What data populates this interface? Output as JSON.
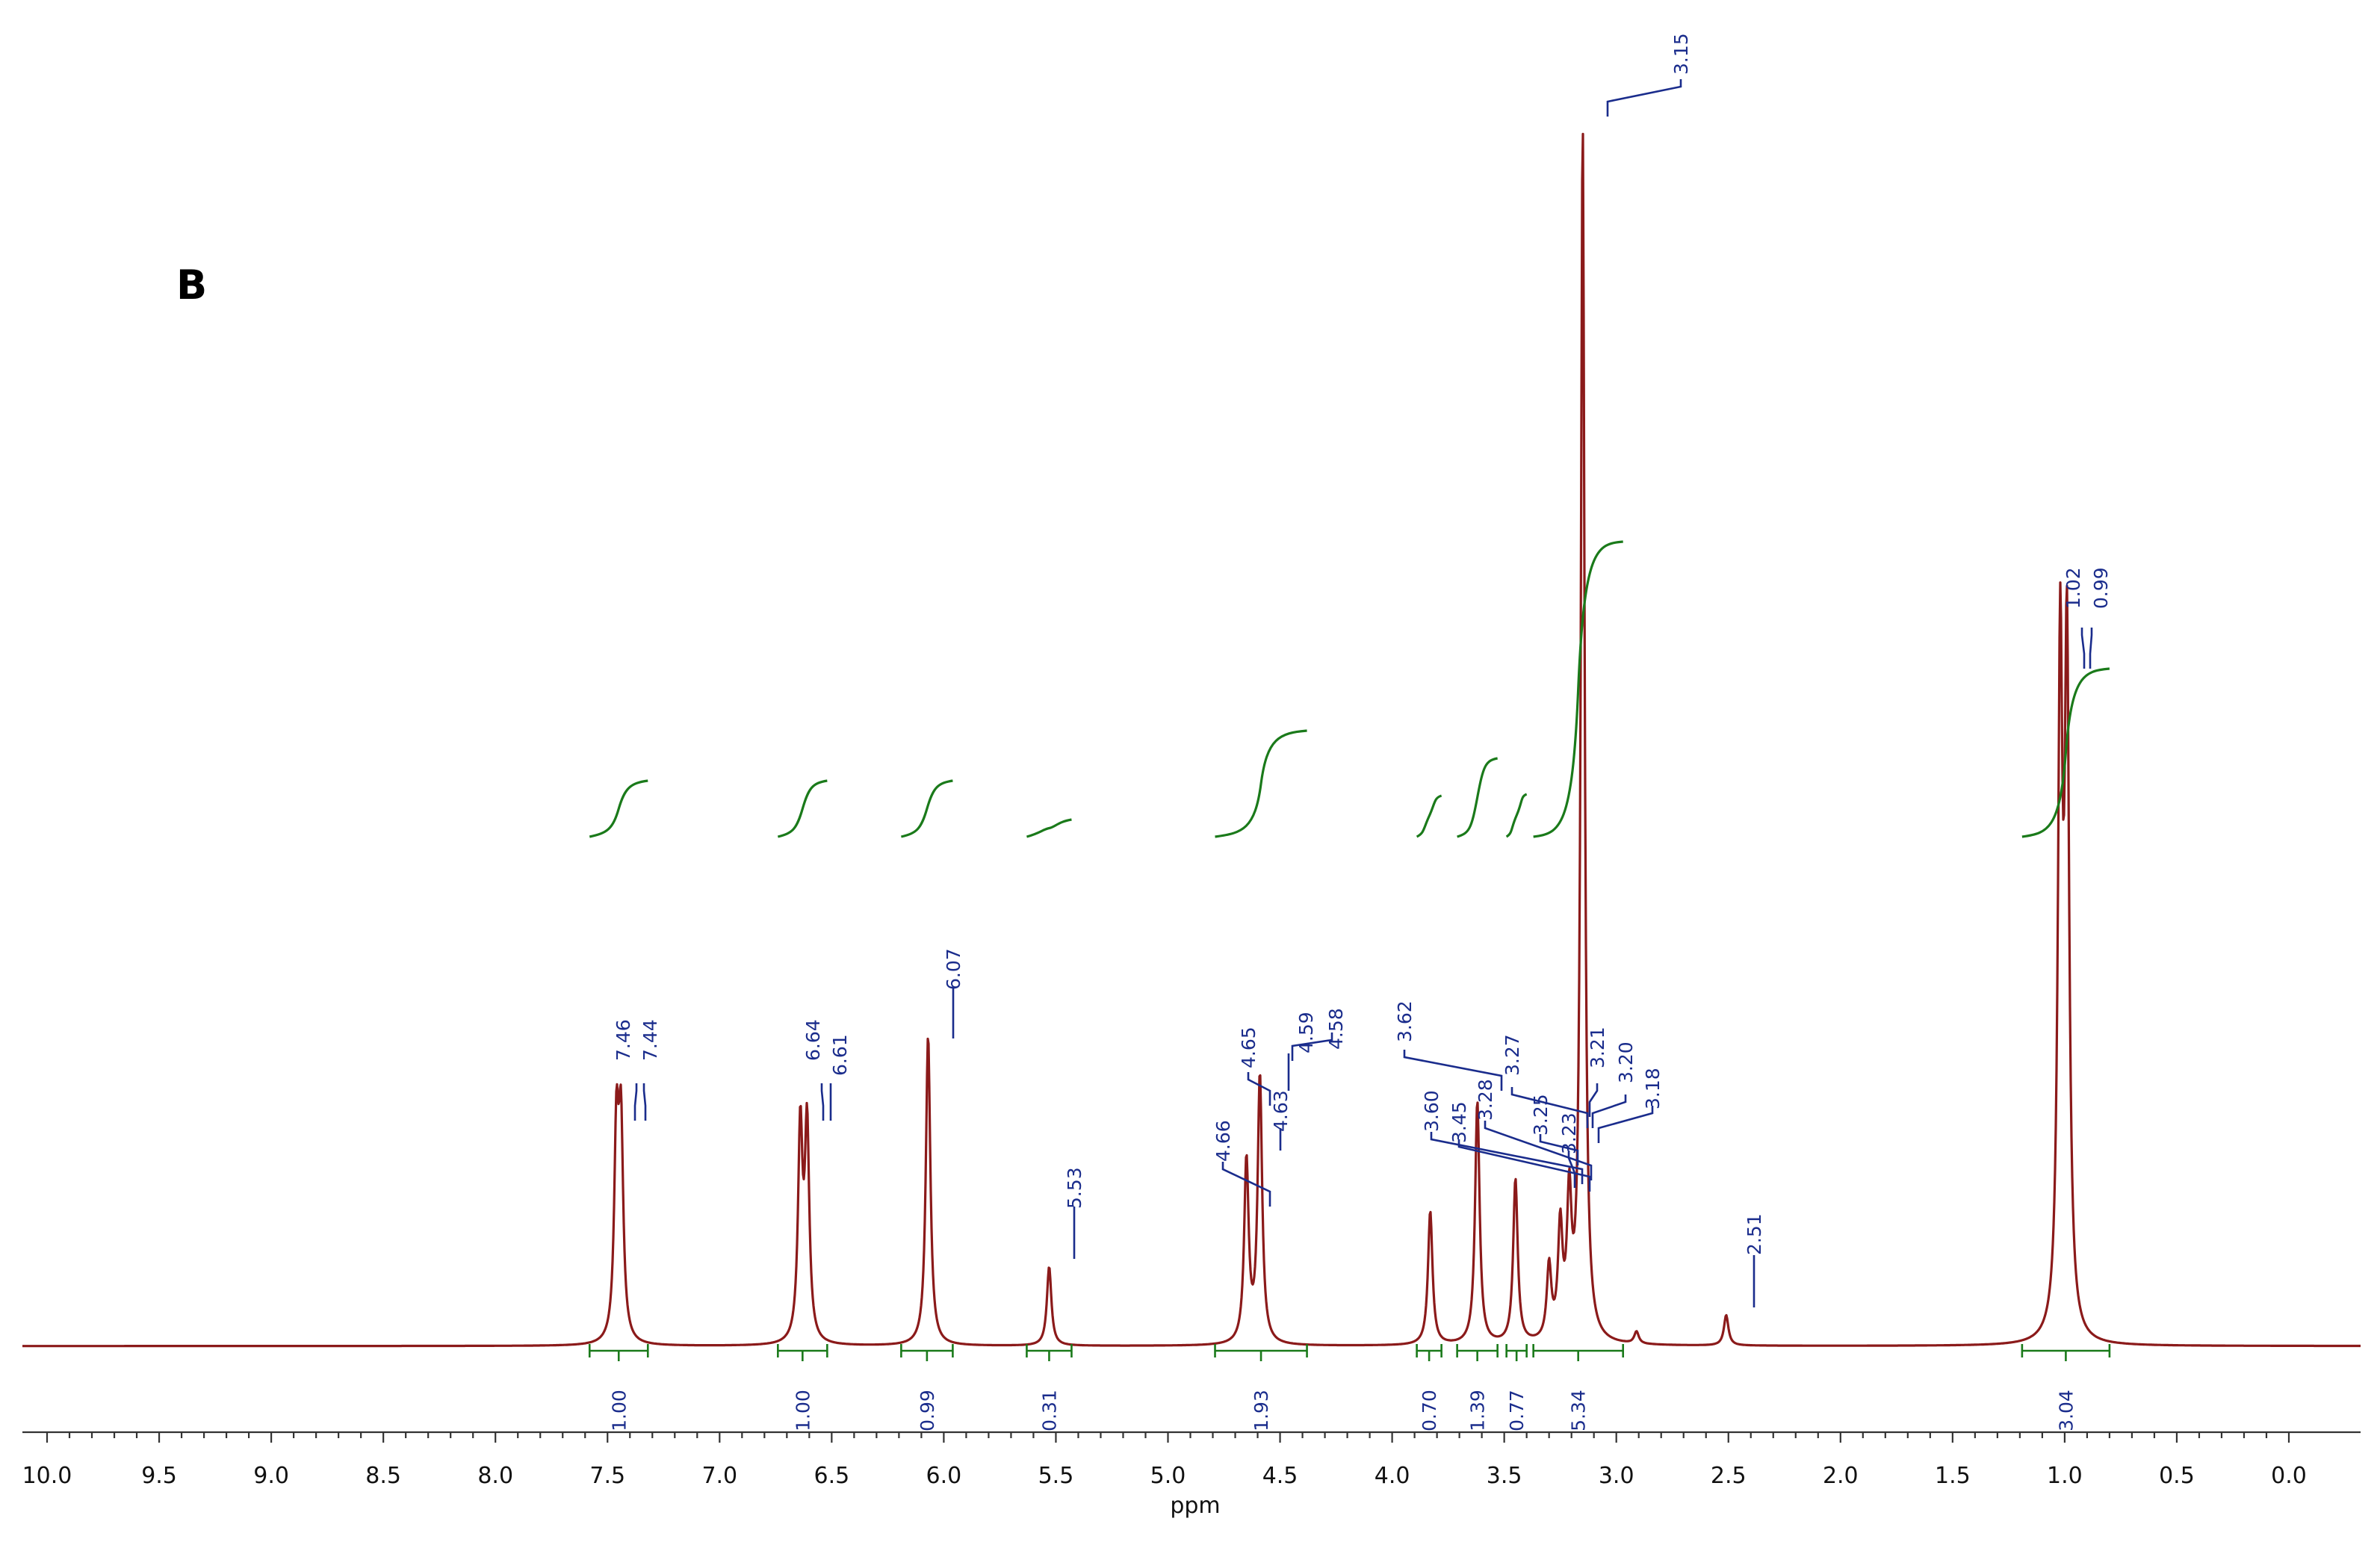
{
  "panel_label": "B",
  "colors": {
    "spectrum": "#8b1a1a",
    "integral": "#1a7a1a",
    "peak_label": "#1a2c8c"
  },
  "chart_data": {
    "type": "line",
    "title": "",
    "xlabel": "ppm",
    "ylabel": "",
    "xlim": [
      10.2,
      -0.2
    ],
    "x_reversed": true,
    "grid": false,
    "x_ticks": [
      "10.0",
      "9.5",
      "9.0",
      "8.5",
      "8.0",
      "7.5",
      "7.0",
      "6.5",
      "6.0",
      "5.5",
      "5.0",
      "4.5",
      "4.0",
      "3.5",
      "3.0",
      "2.5",
      "2.0",
      "1.5",
      "1.0",
      "0.5",
      "0.0"
    ],
    "peak_labels": [
      "7.46",
      "7.44",
      "6.64",
      "6.61",
      "6.07",
      "5.53",
      "4.66",
      "4.65",
      "4.63",
      "4.59",
      "4.58",
      "3.62",
      "3.60",
      "3.45",
      "3.28",
      "3.27",
      "3.25",
      "3.23",
      "3.21",
      "3.20",
      "3.18",
      "3.15",
      "2.51",
      "1.02",
      "0.99"
    ],
    "peaks": [
      {
        "ppm": 7.46,
        "height": 0.168
      },
      {
        "ppm": 7.44,
        "height": 0.168
      },
      {
        "ppm": 6.64,
        "height": 0.175
      },
      {
        "ppm": 6.61,
        "height": 0.175
      },
      {
        "ppm": 6.07,
        "height": 0.255
      },
      {
        "ppm": 5.53,
        "height": 0.065
      },
      {
        "ppm": 4.65,
        "height": 0.15
      },
      {
        "ppm": 4.59,
        "height": 0.22
      },
      {
        "ppm": 3.83,
        "height": 0.11
      },
      {
        "ppm": 3.62,
        "height": 0.2
      },
      {
        "ppm": 3.45,
        "height": 0.135
      },
      {
        "ppm": 3.3,
        "height": 0.06
      },
      {
        "ppm": 3.25,
        "height": 0.09
      },
      {
        "ppm": 3.21,
        "height": 0.11
      },
      {
        "ppm": 3.15,
        "height": 1.0
      },
      {
        "ppm": 2.91,
        "height": 0.01
      },
      {
        "ppm": 2.51,
        "height": 0.025
      },
      {
        "ppm": 1.02,
        "height": 0.55
      },
      {
        "ppm": 0.99,
        "height": 0.55
      }
    ],
    "integrals": [
      {
        "label": "1.00",
        "from": 7.58,
        "to": 7.32
      },
      {
        "label": "1.00",
        "from": 6.74,
        "to": 6.52
      },
      {
        "label": "0.99",
        "from": 6.19,
        "to": 5.96
      },
      {
        "label": "0.31",
        "from": 5.63,
        "to": 5.43
      },
      {
        "label": "1.93",
        "from": 4.79,
        "to": 4.38
      },
      {
        "label": "0.70",
        "from": 3.89,
        "to": 3.78
      },
      {
        "label": "1.39",
        "from": 3.71,
        "to": 3.53
      },
      {
        "label": "0.77",
        "from": 3.49,
        "to": 3.4
      },
      {
        "label": "5.34",
        "from": 3.37,
        "to": 2.97
      },
      {
        "label": "3.04",
        "from": 1.19,
        "to": 0.8
      }
    ]
  }
}
